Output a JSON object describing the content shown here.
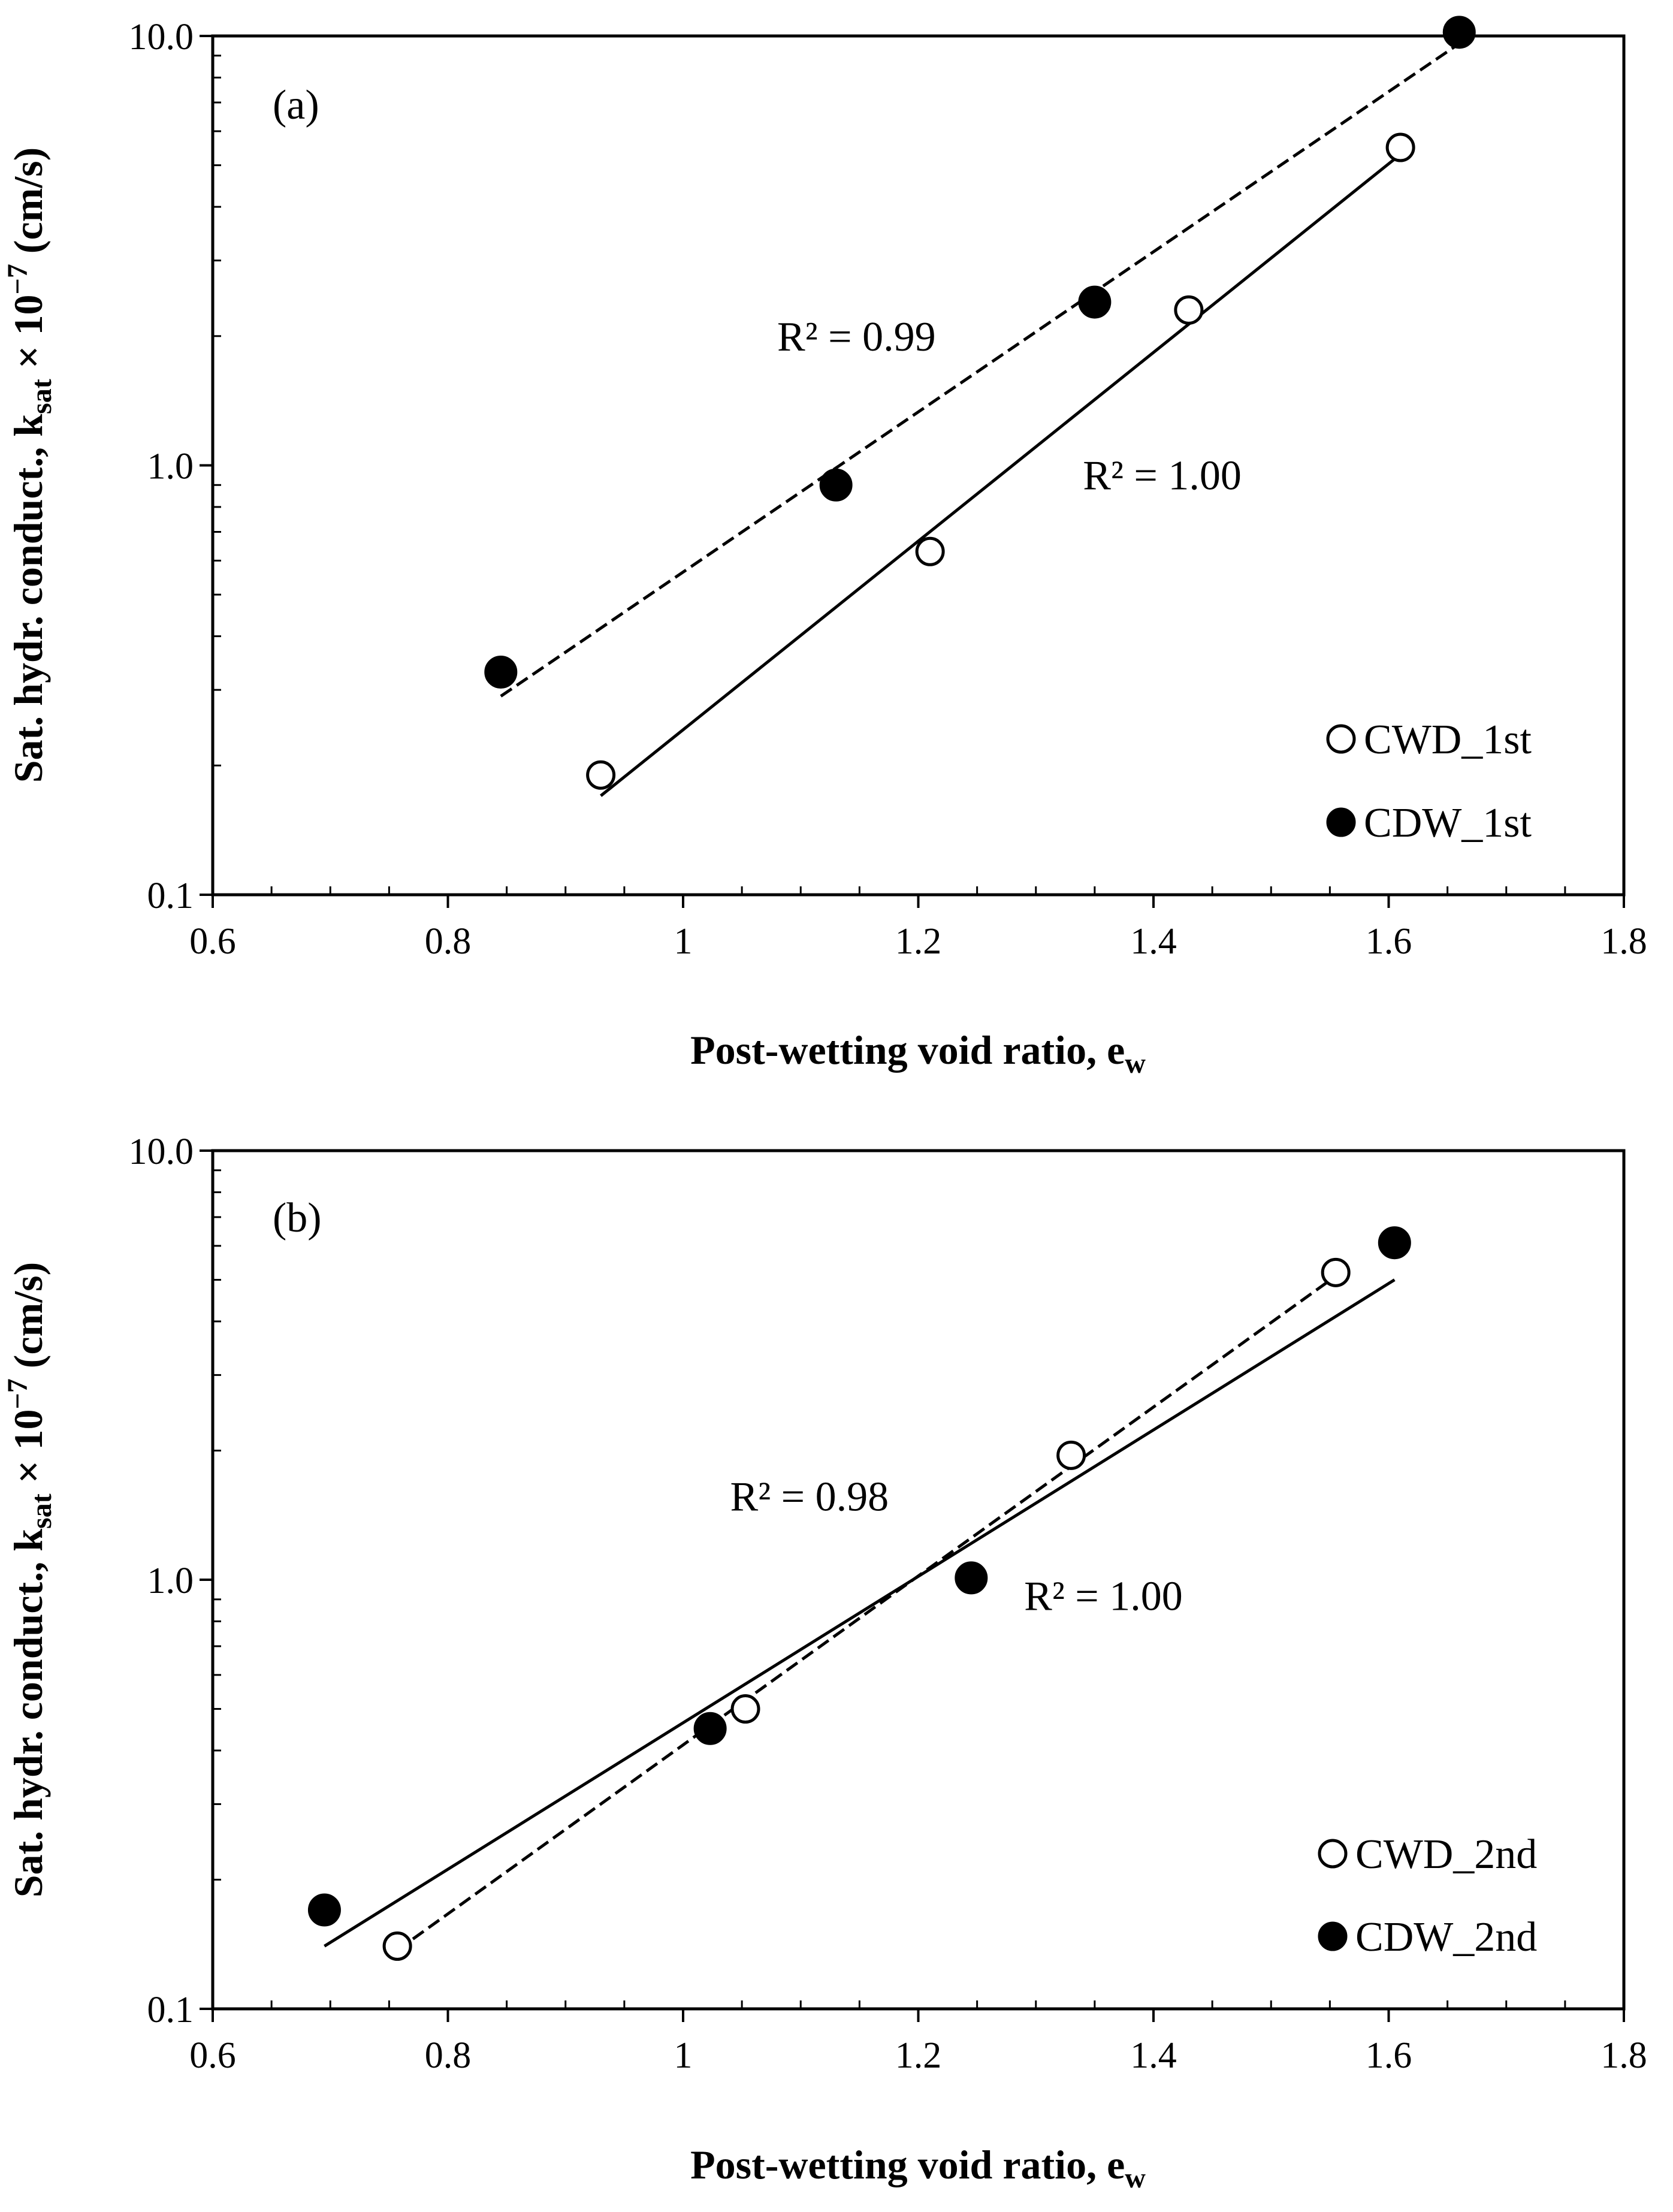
{
  "chart_data": [
    {
      "type": "scatter",
      "panel_label": "(a)",
      "xlabel": "Post-wetting void ratio, e",
      "xlabel_sub": "w",
      "ylabel_parts": [
        "Sat. hydr. conduct., k",
        "sat",
        " × 10",
        "−7",
        " (cm/s)"
      ],
      "xlim": [
        0.6,
        1.8
      ],
      "ylim": [
        0.1,
        10
      ],
      "yscale": "log",
      "xticks": [
        "0.6",
        "0.8",
        "1",
        "1.2",
        "1.4",
        "1.6",
        "1.8"
      ],
      "yticks": [
        "0.1",
        "1.0",
        "10.0"
      ],
      "series": [
        {
          "name": "CWD_1st",
          "marker": "open-circle",
          "x": [
            0.93,
            1.21,
            1.43,
            1.61
          ],
          "y": [
            0.19,
            0.63,
            2.3,
            5.5
          ],
          "trend": {
            "style": "solid",
            "x": [
              0.93,
              1.61
            ],
            "y": [
              0.17,
              5.3
            ]
          }
        },
        {
          "name": "CDW_1st",
          "marker": "filled-circle",
          "x": [
            0.845,
            1.13,
            1.35,
            1.66
          ],
          "y": [
            0.33,
            0.9,
            2.4,
            10.2
          ],
          "trend": {
            "style": "dashed",
            "x": [
              0.845,
              1.66
            ],
            "y": [
              0.29,
              9.6
            ]
          }
        }
      ],
      "annotations": [
        {
          "text": "R² = 0.99",
          "x": 1.08,
          "y": 1.85
        },
        {
          "text": "R² = 1.00",
          "x": 1.34,
          "y": 0.88
        }
      ],
      "legend_position": "bottom-right"
    },
    {
      "type": "scatter",
      "panel_label": "(b)",
      "xlabel": "Post-wetting void ratio, e",
      "xlabel_sub": "w",
      "ylabel_parts": [
        "Sat. hydr. conduct., k",
        "sat",
        " × 10",
        "−7",
        " (cm/s)"
      ],
      "xlim": [
        0.6,
        1.8
      ],
      "ylim": [
        0.1,
        10
      ],
      "yscale": "log",
      "xticks": [
        "0.6",
        "0.8",
        "1",
        "1.2",
        "1.4",
        "1.6",
        "1.8"
      ],
      "yticks": [
        "0.1",
        "1.0",
        "10.0"
      ],
      "series": [
        {
          "name": "CWD_2nd",
          "marker": "open-circle",
          "x": [
            0.757,
            1.053,
            1.33,
            1.555
          ],
          "y": [
            0.14,
            0.5,
            1.95,
            5.2
          ],
          "trend": {
            "style": "dashed",
            "x": [
              0.757,
              1.555
            ],
            "y": [
              0.137,
              5.1
            ]
          }
        },
        {
          "name": "CDW_2nd",
          "marker": "filled-circle",
          "x": [
            0.695,
            1.023,
            1.245,
            1.605
          ],
          "y": [
            0.17,
            0.45,
            1.01,
            6.1
          ],
          "trend": {
            "style": "solid",
            "x": [
              0.695,
              1.605
            ],
            "y": [
              0.14,
              5.0
            ]
          }
        }
      ],
      "annotations": [
        {
          "text": "R² = 0.98",
          "x": 1.04,
          "y": 1.45
        },
        {
          "text": "R² = 1.00",
          "x": 1.29,
          "y": 0.85
        }
      ],
      "legend_position": "bottom-right"
    }
  ]
}
